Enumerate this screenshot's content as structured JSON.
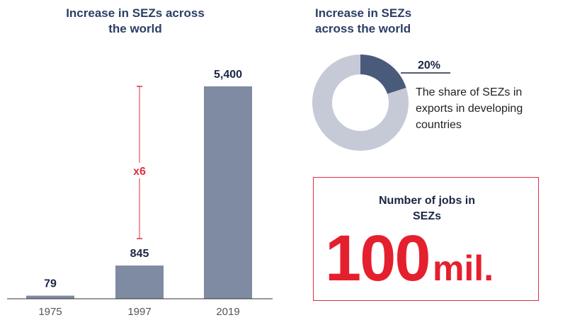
{
  "chart_data": [
    {
      "type": "bar",
      "title": "Increase in SEZs across the world",
      "categories": [
        "1975",
        "1997",
        "2019"
      ],
      "values": [
        79,
        845,
        5400
      ],
      "value_labels": [
        "79",
        "845",
        "5,400"
      ],
      "color": "#7f8ba3",
      "annotation": "x6"
    },
    {
      "type": "pie",
      "title": "Increase in SEZs across the world",
      "values": [
        20,
        80
      ],
      "value_labels": [
        "20%",
        null
      ],
      "colors": [
        "#4a5a7b",
        "#c5cad6"
      ],
      "donut": true,
      "description": "The share of SEZs in exports in developing countries"
    }
  ],
  "jobs_box": {
    "title": "Number of jobs in SEZs",
    "value": 100,
    "unit": "mil."
  }
}
